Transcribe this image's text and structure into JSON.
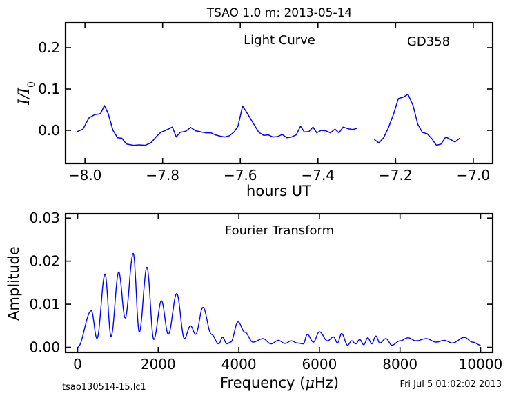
{
  "figure": {
    "title": "TSAO 1.0 m:  2013-05-14",
    "footer_left": "tsao130514-15.lc1",
    "footer_right": "Fri Jul  5 01:02:02 2013",
    "line_color": "#0000ff"
  },
  "chart_data": [
    {
      "type": "line",
      "panel": "light-curve",
      "title": "",
      "annotations": [
        "Light Curve",
        "GD358"
      ],
      "xlabel": "hours UT",
      "ylabel": "I / I0",
      "ylabel_parts": {
        "main": "I",
        "slash": "/",
        "sub_base": "I",
        "sub": "0"
      },
      "xlim": [
        -8.05,
        -6.95
      ],
      "ylim": [
        -0.08,
        0.26
      ],
      "x_ticks": [
        -8.0,
        -7.8,
        -7.6,
        -7.4,
        -7.2,
        -7.0
      ],
      "x_tick_labels": [
        "−8.0",
        "−7.8",
        "−7.6",
        "−7.4",
        "−7.2",
        "−7.0"
      ],
      "y_ticks": [
        0.0,
        0.1,
        0.2
      ],
      "y_tick_labels": [
        "0.0",
        "0.1",
        "0.2"
      ],
      "grid": false,
      "series": [
        {
          "segments": [
            [
              [
                -8.02,
                -0.003
              ],
              [
                -8.005,
                0.003
              ],
              [
                -7.99,
                0.03
              ],
              [
                -7.975,
                0.038
              ],
              [
                -7.96,
                0.04
              ],
              [
                -7.95,
                0.06
              ],
              [
                -7.94,
                0.04
              ],
              [
                -7.928,
                0.0
              ],
              [
                -7.916,
                -0.018
              ],
              [
                -7.905,
                -0.019
              ],
              [
                -7.893,
                -0.033
              ],
              [
                -7.875,
                -0.036
              ],
              [
                -7.86,
                -0.035
              ],
              [
                -7.845,
                -0.036
              ],
              [
                -7.83,
                -0.03
              ],
              [
                -7.815,
                -0.014
              ],
              [
                -7.805,
                -0.005
              ],
              [
                -7.79,
                0.001
              ],
              [
                -7.775,
                0.008
              ],
              [
                -7.765,
                -0.016
              ],
              [
                -7.755,
                -0.005
              ],
              [
                -7.74,
                -0.002
              ],
              [
                -7.728,
                0.007
              ],
              [
                -7.715,
                -0.001
              ],
              [
                -7.7,
                -0.004
              ],
              [
                -7.688,
                -0.006
              ],
              [
                -7.676,
                -0.006
              ],
              [
                -7.664,
                -0.011
              ],
              [
                -7.652,
                -0.014
              ],
              [
                -7.64,
                -0.016
              ],
              [
                -7.628,
                -0.013
              ],
              [
                -7.616,
                -0.004
              ],
              [
                -7.606,
                0.01
              ],
              [
                -7.594,
                0.059
              ],
              [
                -7.58,
                0.038
              ],
              [
                -7.566,
                0.016
              ],
              [
                -7.552,
                -0.005
              ],
              [
                -7.54,
                -0.012
              ],
              [
                -7.528,
                -0.011
              ],
              [
                -7.516,
                -0.016
              ],
              [
                -7.504,
                -0.015
              ],
              [
                -7.492,
                -0.01
              ],
              [
                -7.48,
                -0.018
              ],
              [
                -7.468,
                -0.016
              ],
              [
                -7.456,
                -0.011
              ],
              [
                -7.445,
                0.01
              ],
              [
                -7.435,
                -0.004
              ],
              [
                -7.423,
                -0.003
              ],
              [
                -7.413,
                0.008
              ],
              [
                -7.403,
                -0.006
              ],
              [
                -7.392,
                0.0
              ],
              [
                -7.38,
                -0.001
              ],
              [
                -7.368,
                -0.006
              ],
              [
                -7.356,
                0.003
              ],
              [
                -7.346,
                -0.006
              ],
              [
                -7.335,
                0.008
              ],
              [
                -7.323,
                0.004
              ],
              [
                -7.31,
                0.002
              ],
              [
                -7.3,
                0.005
              ]
            ],
            [
              [
                -7.255,
                -0.022
              ],
              [
                -7.243,
                -0.03
              ],
              [
                -7.231,
                -0.018
              ],
              [
                -7.219,
                0.005
              ],
              [
                -7.205,
                0.04
              ],
              [
                -7.193,
                0.077
              ],
              [
                -7.181,
                0.08
              ],
              [
                -7.168,
                0.087
              ],
              [
                -7.155,
                0.06
              ],
              [
                -7.143,
                0.015
              ],
              [
                -7.131,
                -0.005
              ],
              [
                -7.119,
                -0.008
              ],
              [
                -7.107,
                -0.02
              ],
              [
                -7.095,
                -0.036
              ],
              [
                -7.083,
                -0.033
              ],
              [
                -7.071,
                -0.016
              ],
              [
                -7.059,
                -0.022
              ],
              [
                -7.047,
                -0.028
              ],
              [
                -7.035,
                -0.019
              ]
            ]
          ]
        }
      ]
    },
    {
      "type": "line",
      "panel": "fourier-transform",
      "title": "",
      "annotations": [
        "Fourier Transform"
      ],
      "xlabel": "Frequency (μHz)",
      "xlabel_parts": {
        "before": "Frequency (",
        "mu": "μ",
        "after": "Hz)"
      },
      "ylabel": "Amplitude",
      "xlim": [
        -300,
        10300
      ],
      "ylim": [
        -0.0012,
        0.031
      ],
      "x_ticks": [
        0,
        2000,
        4000,
        6000,
        8000,
        10000
      ],
      "x_tick_labels": [
        "0",
        "2000",
        "4000",
        "6000",
        "8000",
        "10000"
      ],
      "y_ticks": [
        0.0,
        0.01,
        0.02,
        0.03
      ],
      "y_tick_labels": [
        "0.00",
        "0.01",
        "0.02",
        "0.03"
      ],
      "grid": false,
      "peaks": [
        [
          0,
          0.0
        ],
        [
          340,
          0.0085
        ],
        [
          480,
          0.002
        ],
        [
          680,
          0.017
        ],
        [
          830,
          0.0025
        ],
        [
          1020,
          0.0175
        ],
        [
          1180,
          0.0068
        ],
        [
          1380,
          0.0218
        ],
        [
          1530,
          0.0035
        ],
        [
          1720,
          0.0186
        ],
        [
          1890,
          0.0018
        ],
        [
          2080,
          0.0108
        ],
        [
          2250,
          0.003
        ],
        [
          2460,
          0.0125
        ],
        [
          2650,
          0.002
        ],
        [
          2800,
          0.005
        ],
        [
          2930,
          0.003
        ],
        [
          3110,
          0.0093
        ],
        [
          3320,
          0.003
        ],
        [
          3500,
          0.0008
        ],
        [
          3600,
          0.0023
        ],
        [
          3700,
          0.0008
        ],
        [
          3800,
          0.0012
        ],
        [
          3980,
          0.0059
        ],
        [
          4150,
          0.0035
        ],
        [
          4350,
          0.0012
        ],
        [
          4600,
          0.002
        ],
        [
          4800,
          0.0008
        ],
        [
          4980,
          0.0016
        ],
        [
          5150,
          0.0009
        ],
        [
          5300,
          0.0015
        ],
        [
          5450,
          0.001
        ],
        [
          5600,
          0.0008
        ],
        [
          5700,
          0.003
        ],
        [
          5850,
          0.0012
        ],
        [
          6000,
          0.0036
        ],
        [
          6200,
          0.0015
        ],
        [
          6350,
          0.0024
        ],
        [
          6450,
          0.001
        ],
        [
          6550,
          0.0032
        ],
        [
          6700,
          0.0005
        ],
        [
          6800,
          0.0015
        ],
        [
          6900,
          0.0008
        ],
        [
          7000,
          0.0018
        ],
        [
          7100,
          0.0006
        ],
        [
          7200,
          0.0022
        ],
        [
          7300,
          0.0008
        ],
        [
          7400,
          0.0026
        ],
        [
          7500,
          0.001
        ],
        [
          7650,
          0.002
        ],
        [
          7800,
          0.0005
        ],
        [
          8000,
          0.0015
        ],
        [
          8200,
          0.0022
        ],
        [
          8400,
          0.0015
        ],
        [
          8650,
          0.002
        ],
        [
          8900,
          0.0012
        ],
        [
          9100,
          0.0016
        ],
        [
          9300,
          0.001
        ],
        [
          9600,
          0.0023
        ],
        [
          9800,
          0.0012
        ],
        [
          10000,
          0.0005
        ]
      ]
    }
  ]
}
